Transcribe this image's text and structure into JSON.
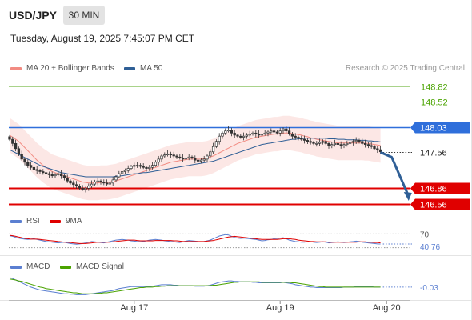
{
  "header": {
    "symbol": "USD/JPY",
    "timeframe": "30 MIN",
    "datetime": "Tuesday, August 19, 2025 7:45:07 PM CET"
  },
  "legend": {
    "main": [
      {
        "label": "MA 20 + Bollinger Bands",
        "color": "#f28b82"
      },
      {
        "label": "MA 50",
        "color": "#2f5f96"
      }
    ],
    "rsi": [
      {
        "label": "RSI",
        "color": "#5b7fd1"
      },
      {
        "label": "9MA",
        "color": "#e00000"
      }
    ],
    "macd": [
      {
        "label": "MACD",
        "color": "#5b7fd1"
      },
      {
        "label": "MACD Signal",
        "color": "#4aa300"
      }
    ]
  },
  "credit": "Research © 2025 Trading Central",
  "chart_data": [
    {
      "type": "candlestick",
      "name": "price",
      "ylim": [
        146.45,
        149.0
      ],
      "x_ticks": [
        {
          "label": "Aug 17",
          "index": 41
        },
        {
          "label": "Aug 19",
          "index": 89
        },
        {
          "label": "Aug 20",
          "index": 124
        }
      ],
      "levels": [
        {
          "value": 148.82,
          "label": "148.82",
          "style": "target",
          "color": "#4aa300"
        },
        {
          "value": 148.52,
          "label": "148.52",
          "style": "target",
          "color": "#4aa300"
        },
        {
          "value": 148.03,
          "label": "148.03",
          "style": "pivot",
          "color": "#2f6fdb"
        },
        {
          "value": 146.86,
          "label": "146.86",
          "style": "support",
          "color": "#e00000"
        },
        {
          "value": 146.56,
          "label": "146.56",
          "style": "support",
          "color": "#e00000"
        }
      ],
      "last_price": {
        "value": 147.56,
        "label": "147.56"
      },
      "forecast_arrow": {
        "from_index": 122,
        "from_value": 147.55,
        "to_index": 131,
        "to_value": 146.65,
        "color": "#2f5f96"
      },
      "close": [
        147.8,
        147.72,
        147.62,
        147.52,
        147.42,
        147.36,
        147.3,
        147.26,
        147.22,
        147.2,
        147.18,
        147.16,
        147.14,
        147.12,
        147.1,
        147.12,
        147.14,
        147.1,
        147.06,
        147.0,
        146.96,
        146.93,
        146.9,
        146.86,
        146.84,
        146.86,
        146.9,
        146.94,
        146.98,
        147.0,
        146.98,
        146.96,
        146.94,
        146.96,
        147.02,
        147.08,
        147.14,
        147.18,
        147.2,
        147.24,
        147.28,
        147.3,
        147.3,
        147.28,
        147.26,
        147.24,
        147.26,
        147.3,
        147.36,
        147.42,
        147.48,
        147.5,
        147.52,
        147.5,
        147.48,
        147.46,
        147.44,
        147.42,
        147.44,
        147.46,
        147.44,
        147.4,
        147.38,
        147.4,
        147.42,
        147.48,
        147.56,
        147.66,
        147.76,
        147.86,
        147.92,
        147.96,
        147.98,
        147.92,
        147.88,
        147.86,
        147.84,
        147.86,
        147.88,
        147.9,
        147.92,
        147.9,
        147.88,
        147.9,
        147.92,
        147.94,
        147.96,
        147.94,
        147.92,
        147.96,
        148.0,
        147.96,
        147.9,
        147.86,
        147.84,
        147.82,
        147.8,
        147.78,
        147.76,
        147.74,
        147.72,
        147.72,
        147.74,
        147.76,
        147.72,
        147.68,
        147.7,
        147.72,
        147.7,
        147.68,
        147.7,
        147.72,
        147.74,
        147.76,
        147.78,
        147.76,
        147.72,
        147.7,
        147.68,
        147.66,
        147.62,
        147.6,
        147.56
      ],
      "ma20": [
        147.88,
        147.84,
        147.8,
        147.76,
        147.7,
        147.64,
        147.58,
        147.52,
        147.46,
        147.4,
        147.35,
        147.3,
        147.26,
        147.22,
        147.18,
        147.16,
        147.14,
        147.12,
        147.1,
        147.08,
        147.06,
        147.04,
        147.02,
        147.0,
        146.98,
        146.97,
        146.96,
        146.96,
        146.96,
        146.96,
        146.97,
        146.97,
        146.97,
        146.98,
        146.99,
        147.0,
        147.02,
        147.04,
        147.06,
        147.08,
        147.1,
        147.12,
        147.14,
        147.16,
        147.18,
        147.2,
        147.22,
        147.24,
        147.26,
        147.28,
        147.3,
        147.32,
        147.34,
        147.36,
        147.37,
        147.38,
        147.39,
        147.4,
        147.41,
        147.42,
        147.42,
        147.42,
        147.42,
        147.42,
        147.43,
        147.44,
        147.46,
        147.48,
        147.51,
        147.54,
        147.57,
        147.6,
        147.63,
        147.66,
        147.69,
        147.72,
        147.74,
        147.76,
        147.78,
        147.8,
        147.82,
        147.84,
        147.85,
        147.86,
        147.87,
        147.88,
        147.89,
        147.9,
        147.9,
        147.91,
        147.92,
        147.92,
        147.92,
        147.91,
        147.9,
        147.89,
        147.88,
        147.86,
        147.85,
        147.83,
        147.82,
        147.8,
        147.79,
        147.78,
        147.77,
        147.76,
        147.75,
        147.74,
        147.73,
        147.73,
        147.73,
        147.73,
        147.73,
        147.73,
        147.73,
        147.73,
        147.73,
        147.72,
        147.72,
        147.71,
        147.7,
        147.69,
        147.68
      ],
      "ma50": [
        147.6,
        147.57,
        147.54,
        147.51,
        147.48,
        147.45,
        147.42,
        147.39,
        147.36,
        147.33,
        147.3,
        147.28,
        147.26,
        147.24,
        147.22,
        147.2,
        147.18,
        147.16,
        147.15,
        147.14,
        147.13,
        147.12,
        147.11,
        147.1,
        147.09,
        147.08,
        147.08,
        147.08,
        147.08,
        147.08,
        147.08,
        147.08,
        147.08,
        147.08,
        147.08,
        147.09,
        147.1,
        147.1,
        147.11,
        147.12,
        147.13,
        147.14,
        147.14,
        147.15,
        147.16,
        147.16,
        147.17,
        147.18,
        147.19,
        147.2,
        147.21,
        147.22,
        147.23,
        147.24,
        147.25,
        147.26,
        147.27,
        147.28,
        147.29,
        147.3,
        147.31,
        147.32,
        147.33,
        147.34,
        147.35,
        147.36,
        147.37,
        147.38,
        147.4,
        147.42,
        147.44,
        147.46,
        147.48,
        147.5,
        147.52,
        147.54,
        147.56,
        147.58,
        147.6,
        147.62,
        147.64,
        147.66,
        147.68,
        147.7,
        147.71,
        147.72,
        147.73,
        147.74,
        147.75,
        147.76,
        147.77,
        147.78,
        147.79,
        147.8,
        147.8,
        147.81,
        147.81,
        147.82,
        147.82,
        147.82,
        147.82,
        147.82,
        147.82,
        147.82,
        147.82,
        147.81,
        147.81,
        147.81,
        147.8,
        147.8,
        147.8,
        147.79,
        147.79,
        147.79,
        147.79,
        147.78,
        147.78,
        147.78,
        147.77,
        147.77,
        147.76,
        147.76,
        147.75
      ],
      "bb_width": 0.33
    },
    {
      "type": "line",
      "name": "rsi",
      "ylim": [
        15,
        85
      ],
      "levels": [
        {
          "value": 70,
          "label": "70"
        },
        {
          "value": 30,
          "label": "30"
        }
      ],
      "last_value": {
        "value": 40.76,
        "label": "40.76"
      },
      "rsi": [
        65,
        63,
        60,
        58,
        56,
        55,
        54,
        55,
        56,
        54,
        52,
        50,
        48,
        47,
        46,
        45,
        44,
        45,
        46,
        44,
        42,
        41,
        40,
        41,
        42,
        44,
        46,
        48,
        47,
        46,
        45,
        44,
        46,
        48,
        50,
        52,
        53,
        54,
        53,
        52,
        50,
        49,
        48,
        47,
        48,
        50,
        52,
        53,
        54,
        53,
        52,
        50,
        49,
        48,
        47,
        46,
        45,
        47,
        49,
        51,
        50,
        49,
        48,
        47,
        48,
        50,
        52,
        56,
        60,
        64,
        66,
        68,
        67,
        63,
        60,
        58,
        57,
        58,
        57,
        56,
        55,
        54,
        52,
        50,
        51,
        53,
        54,
        56,
        57,
        58,
        59,
        56,
        52,
        50,
        48,
        47,
        46,
        46,
        47,
        48,
        46,
        45,
        46,
        47,
        46,
        44,
        45,
        46,
        47,
        46,
        45,
        46,
        47,
        48,
        49,
        48,
        46,
        45,
        44,
        43,
        42,
        41,
        40.76
      ],
      "ma9": [
        66,
        65,
        63,
        61,
        59,
        57,
        56,
        55,
        55,
        55,
        54,
        53,
        52,
        51,
        50,
        49,
        48,
        47,
        46,
        46,
        45,
        44,
        43,
        42,
        42,
        42,
        43,
        44,
        45,
        46,
        46,
        46,
        46,
        46,
        47,
        48,
        49,
        50,
        51,
        52,
        52,
        52,
        51,
        50,
        50,
        50,
        50,
        50,
        51,
        51,
        51,
        51,
        51,
        51,
        50,
        50,
        49,
        48,
        48,
        48,
        48,
        48,
        48,
        48,
        48,
        49,
        50,
        51,
        53,
        55,
        57,
        59,
        61,
        62,
        63,
        62,
        61,
        60,
        59,
        58,
        57,
        56,
        55,
        54,
        54,
        54,
        54,
        54,
        54,
        55,
        56,
        56,
        56,
        55,
        54,
        52,
        51,
        50,
        49,
        48,
        48,
        47,
        47,
        47,
        47,
        46,
        46,
        46,
        46,
        46,
        46,
        46,
        46,
        46,
        46,
        47,
        47,
        47,
        46,
        46,
        45,
        45,
        44
      ]
    },
    {
      "type": "line",
      "name": "macd",
      "ylim": [
        -0.25,
        0.22
      ],
      "last_value": {
        "value": -0.03,
        "label": "-0.03"
      },
      "macd": [
        0.17,
        0.15,
        0.12,
        0.09,
        0.06,
        0.03,
        0.0,
        -0.03,
        -0.05,
        -0.07,
        -0.09,
        -0.1,
        -0.11,
        -0.12,
        -0.13,
        -0.14,
        -0.15,
        -0.16,
        -0.17,
        -0.17,
        -0.18,
        -0.18,
        -0.19,
        -0.19,
        -0.19,
        -0.19,
        -0.18,
        -0.17,
        -0.16,
        -0.15,
        -0.14,
        -0.13,
        -0.12,
        -0.11,
        -0.1,
        -0.08,
        -0.06,
        -0.05,
        -0.04,
        -0.03,
        -0.02,
        -0.02,
        -0.02,
        -0.02,
        -0.02,
        -0.02,
        -0.02,
        -0.01,
        0.0,
        0.01,
        0.02,
        0.02,
        0.02,
        0.02,
        0.01,
        0.01,
        0.0,
        0.0,
        0.0,
        0.0,
        0.0,
        -0.01,
        -0.01,
        -0.01,
        -0.01,
        0.0,
        0.01,
        0.03,
        0.05,
        0.07,
        0.08,
        0.09,
        0.1,
        0.1,
        0.09,
        0.09,
        0.08,
        0.08,
        0.08,
        0.08,
        0.07,
        0.07,
        0.06,
        0.06,
        0.06,
        0.06,
        0.06,
        0.06,
        0.06,
        0.06,
        0.07,
        0.06,
        0.05,
        0.04,
        0.02,
        0.01,
        0.0,
        -0.01,
        -0.02,
        -0.03,
        -0.03,
        -0.04,
        -0.04,
        -0.04,
        -0.04,
        -0.04,
        -0.04,
        -0.04,
        -0.04,
        -0.04,
        -0.03,
        -0.03,
        -0.03,
        -0.03,
        -0.02,
        -0.02,
        -0.02,
        -0.02,
        -0.02,
        -0.02,
        -0.03,
        -0.03,
        -0.03
      ],
      "signal": [
        0.14,
        0.13,
        0.12,
        0.1,
        0.09,
        0.07,
        0.05,
        0.03,
        0.01,
        -0.01,
        -0.03,
        -0.04,
        -0.06,
        -0.07,
        -0.08,
        -0.09,
        -0.1,
        -0.11,
        -0.12,
        -0.13,
        -0.14,
        -0.15,
        -0.15,
        -0.16,
        -0.17,
        -0.17,
        -0.17,
        -0.17,
        -0.17,
        -0.16,
        -0.16,
        -0.15,
        -0.15,
        -0.14,
        -0.13,
        -0.12,
        -0.11,
        -0.1,
        -0.09,
        -0.08,
        -0.07,
        -0.06,
        -0.05,
        -0.04,
        -0.04,
        -0.03,
        -0.03,
        -0.03,
        -0.02,
        -0.02,
        -0.01,
        -0.01,
        0.0,
        0.0,
        0.0,
        0.0,
        0.0,
        0.0,
        0.0,
        0.0,
        0.0,
        0.0,
        0.0,
        0.0,
        0.0,
        0.0,
        0.0,
        0.01,
        0.01,
        0.02,
        0.03,
        0.04,
        0.05,
        0.06,
        0.07,
        0.07,
        0.08,
        0.08,
        0.08,
        0.08,
        0.08,
        0.08,
        0.08,
        0.07,
        0.07,
        0.07,
        0.07,
        0.07,
        0.07,
        0.07,
        0.07,
        0.07,
        0.07,
        0.06,
        0.06,
        0.05,
        0.04,
        0.03,
        0.02,
        0.01,
        0.0,
        -0.01,
        -0.02,
        -0.02,
        -0.03,
        -0.03,
        -0.03,
        -0.03,
        -0.03,
        -0.03,
        -0.03,
        -0.03,
        -0.03,
        -0.03,
        -0.03,
        -0.03,
        -0.03,
        -0.03,
        -0.03,
        -0.03,
        -0.03,
        -0.03,
        -0.03
      ]
    }
  ]
}
